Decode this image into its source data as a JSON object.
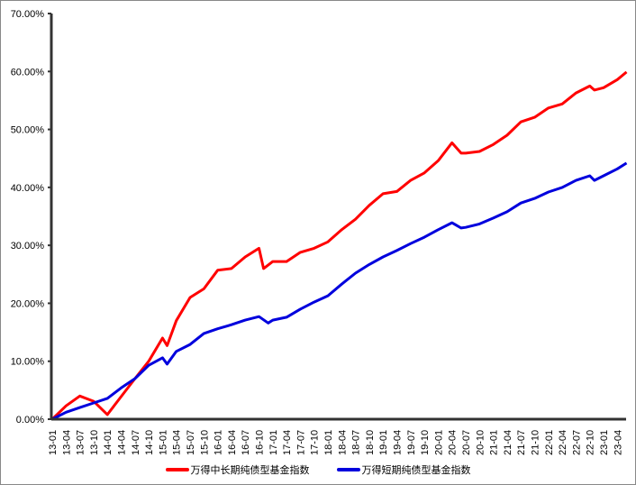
{
  "chart_data": {
    "type": "line",
    "title": "",
    "xlabel": "",
    "ylabel": "",
    "ylim": [
      0,
      70
    ],
    "yticks": [
      "0.00%",
      "10.00%",
      "20.00%",
      "30.00%",
      "40.00%",
      "50.00%",
      "60.00%",
      "70.00%"
    ],
    "ytick_values": [
      0,
      10,
      20,
      30,
      40,
      50,
      60,
      70
    ],
    "x_unit": "months since 13-01",
    "xticks": [
      "13-01",
      "13-04",
      "13-07",
      "13-10",
      "14-01",
      "14-04",
      "14-07",
      "14-10",
      "15-01",
      "15-04",
      "15-07",
      "15-10",
      "16-01",
      "16-04",
      "16-07",
      "16-10",
      "17-01",
      "17-04",
      "17-07",
      "17-10",
      "18-01",
      "18-04",
      "18-07",
      "18-10",
      "19-01",
      "19-04",
      "19-07",
      "19-10",
      "20-01",
      "20-04",
      "20-07",
      "20-10",
      "21-01",
      "21-04",
      "21-07",
      "21-10",
      "22-01",
      "22-04",
      "22-07",
      "22-10",
      "23-01",
      "23-04"
    ],
    "legend_position": "bottom",
    "grid": false,
    "series": [
      {
        "name": "万得中长期纯债型基金指数",
        "color": "#ff0000",
        "x": [
          0,
          3,
          6,
          9,
          12,
          15,
          18,
          21,
          24,
          25,
          27,
          30,
          33,
          36,
          39,
          42,
          45,
          46,
          48,
          51,
          54,
          57,
          60,
          63,
          66,
          69,
          72,
          75,
          78,
          81,
          84,
          87,
          89,
          90,
          93,
          96,
          99,
          102,
          105,
          108,
          111,
          114,
          117,
          118,
          120,
          123,
          125
        ],
        "y": [
          0,
          2.3,
          4.0,
          3.1,
          0.8,
          3.9,
          7.0,
          10.0,
          14.0,
          12.7,
          17.0,
          21.0,
          22.5,
          25.7,
          26.0,
          28.0,
          29.5,
          26.0,
          27.2,
          27.2,
          28.8,
          29.5,
          30.6,
          32.7,
          34.5,
          36.9,
          38.9,
          39.3,
          41.2,
          42.5,
          44.6,
          47.7,
          45.9,
          45.9,
          46.2,
          47.4,
          49.0,
          51.3,
          52.1,
          53.7,
          54.4,
          56.3,
          57.5,
          56.8,
          57.2,
          58.6,
          59.9
        ]
      },
      {
        "name": "万得短期纯债型基金指数",
        "color": "#0000dd",
        "x": [
          0,
          3,
          6,
          9,
          12,
          15,
          18,
          21,
          24,
          25,
          27,
          30,
          33,
          36,
          39,
          42,
          45,
          47,
          48,
          51,
          54,
          57,
          60,
          63,
          66,
          69,
          72,
          75,
          78,
          81,
          84,
          87,
          89,
          90,
          93,
          96,
          99,
          102,
          105,
          108,
          111,
          114,
          117,
          118,
          120,
          123,
          125
        ],
        "y": [
          0,
          1.2,
          2.0,
          2.8,
          3.6,
          5.4,
          7.0,
          9.3,
          10.6,
          9.5,
          11.7,
          12.9,
          14.8,
          15.6,
          16.3,
          17.1,
          17.7,
          16.6,
          17.1,
          17.6,
          19.0,
          20.2,
          21.3,
          23.3,
          25.2,
          26.7,
          28.0,
          29.1,
          30.3,
          31.4,
          32.7,
          33.9,
          33.0,
          33.1,
          33.7,
          34.7,
          35.8,
          37.3,
          38.1,
          39.2,
          40.0,
          41.2,
          42.0,
          41.2,
          42.0,
          43.2,
          44.2
        ]
      }
    ]
  }
}
